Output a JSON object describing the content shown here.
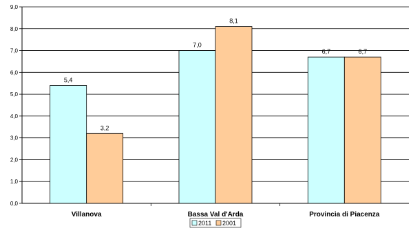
{
  "chart_data": {
    "type": "bar",
    "categories": [
      "Villanova",
      "Bassa Val d'Arda",
      "Provincia di Piacenza"
    ],
    "series": [
      {
        "name": "2011",
        "values": [
          5.4,
          7.0,
          6.7
        ],
        "labels": [
          "5,4",
          "7,0",
          "6,7"
        ],
        "color": "#ccffff"
      },
      {
        "name": "2001",
        "values": [
          3.2,
          8.1,
          6.7
        ],
        "labels": [
          "3,2",
          "8,1",
          "6,7"
        ],
        "color": "#ffcc99"
      }
    ],
    "ylim": [
      0,
      9
    ],
    "yticks": [
      0,
      1,
      2,
      3,
      4,
      5,
      6,
      7,
      8,
      9
    ],
    "ytick_labels": [
      "0,0",
      "1,0",
      "2,0",
      "3,0",
      "4,0",
      "5,0",
      "6,0",
      "7,0",
      "8,0",
      "9,0"
    ],
    "grid": true,
    "legend": "bottom-center"
  }
}
